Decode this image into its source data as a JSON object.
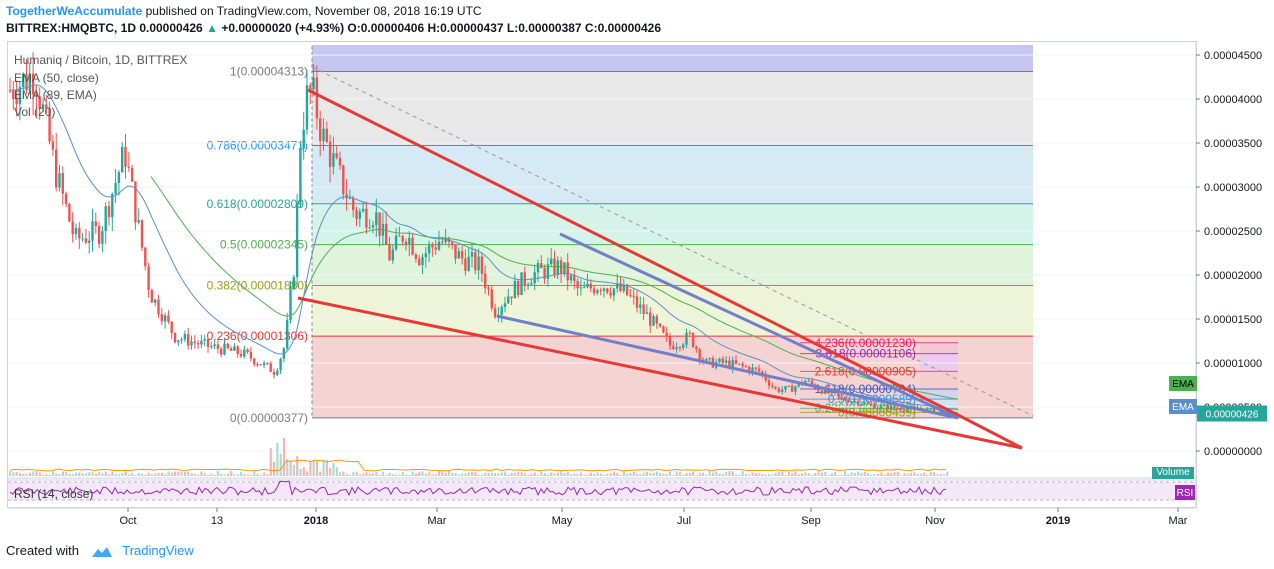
{
  "header": {
    "author": "TogetherWeAccumulate",
    "published_text": "published on TradingView.com, November 08, 2018 16:19 UTC",
    "symbol_line_a": "BITTREX:HMQBTC, 1D  0.00000426",
    "symbol_line_b": "+0.00000020 (+4.93%) O:0.00000406 H:0.00000437 L:0.00000387 C:0.00000426",
    "up_arrow": "▲"
  },
  "legend": {
    "title": "Humaniq / Bitcoin, 1D, BITTREX",
    "ema50": "EMA (50, close)",
    "ema89": "EMA (89, EMA)",
    "vol": "Vol (20)"
  },
  "footer": {
    "created_with": "Created with",
    "brand": "TradingView"
  },
  "chart_data": {
    "type": "candlestick",
    "price_axis_ticks": [
      "0.00004500",
      "0.00004000",
      "0.00003500",
      "0.00003000",
      "0.00002500",
      "0.00002000",
      "0.00001500",
      "0.00001000",
      "0.00000500",
      "0.00000000"
    ],
    "price_axis_range": [
      -2e-06,
      4.7e-05
    ],
    "last_price_label": "0.00000426",
    "time_labels": [
      "Oct",
      "13",
      "2018",
      "Mar",
      "May",
      "Jul",
      "Sep",
      "Nov",
      "2019",
      "Mar"
    ],
    "fib_retracement": [
      {
        "label": "1(0.00004313)",
        "value": 4.313e-05,
        "color": "#787b86"
      },
      {
        "label": "0.786(0.00003471)",
        "value": 3.471e-05,
        "color": "#2196f3"
      },
      {
        "label": "0.618(0.00002809)",
        "value": 2.809e-05,
        "color": "#26a69a"
      },
      {
        "label": "0.5(0.00002345)",
        "value": 2.345e-05,
        "color": "#4caf50"
      },
      {
        "label": "0.382(0.00001880)",
        "value": 1.88e-05,
        "color": "#9c9c1e"
      },
      {
        "label": "0.236(0.00001306)",
        "value": 1.306e-05,
        "color": "#e53935"
      },
      {
        "label": "0(0.00000377)",
        "value": 3.77e-06,
        "color": "#787b86"
      }
    ],
    "fib_extension": [
      {
        "label": "4.236(0.00001230)",
        "value": 1.23e-05,
        "color": "#e91e63"
      },
      {
        "label": "3.618(0.00001106)",
        "value": 1.106e-05,
        "color": "#9c27b0"
      },
      {
        "label": "2.618(0.00000905)",
        "value": 9.05e-06,
        "color": "#e53935"
      },
      {
        "label": "1.618(0.00000704)",
        "value": 7.04e-06,
        "color": "#3f51b5"
      },
      {
        "label": "0.5(0.00000589)",
        "value": 5.89e-06,
        "color": "#2196f3"
      },
      {
        "label": "0.236(0.00000486)",
        "value": 4.86e-06,
        "color": "#4caf50"
      },
      {
        "label": "0(0.00000439)",
        "value": 4.39e-06,
        "color": "#9c9c1e"
      }
    ],
    "pane_badges": {
      "ema_a": "EMA",
      "ema_b": "EMA",
      "volume": "Volume",
      "rsi": "RSI"
    },
    "rsi_label": "RSI (14, close)",
    "colors": {
      "up": "#26a69a",
      "down": "#ef5350",
      "wedge_red": "#e53935",
      "wedge_blue": "#6f7fc9",
      "ema50": "#5b8fc9",
      "ema89": "#4caf50",
      "rsi": "#9c27b0"
    }
  }
}
